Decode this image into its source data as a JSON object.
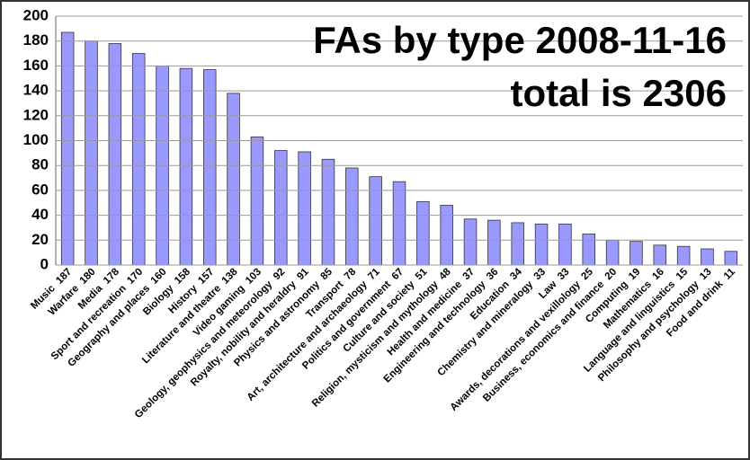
{
  "chart_data": {
    "type": "bar",
    "title": "FAs by type 2008-11-16",
    "subtitle": "total is 2306",
    "categories": [
      "Music",
      "Warfare",
      "Media",
      "Sport and recreation",
      "Geography and places",
      "Biology",
      "History",
      "Literature and theatre",
      "Video gaming",
      "Geology, geophysics and meteorology",
      "Royalty, nobility and heraldry",
      "Physics and astronomy",
      "Transport",
      "Art, architecture and archaeology",
      "Politics and government",
      "Culture and society",
      "Religion, mysticism and mythology",
      "Health and medicine",
      "Engineering and technology",
      "Education",
      "Chemistry and mineralogy",
      "Law",
      "Awards, decorations and vexillology",
      "Business, economics and finance",
      "Computing",
      "Mathematics",
      "Language and linguistics",
      "Philosophy and psychology",
      "Food and drink"
    ],
    "values": [
      187,
      180,
      178,
      170,
      160,
      158,
      157,
      138,
      103,
      92,
      91,
      85,
      78,
      71,
      67,
      51,
      48,
      37,
      36,
      34,
      33,
      33,
      25,
      20,
      19,
      16,
      15,
      13,
      11
    ],
    "color": "#9999ff",
    "ylim": [
      0,
      200
    ],
    "yticks": [
      0,
      20,
      40,
      60,
      80,
      100,
      120,
      140,
      160,
      180,
      200
    ],
    "grid": true
  }
}
